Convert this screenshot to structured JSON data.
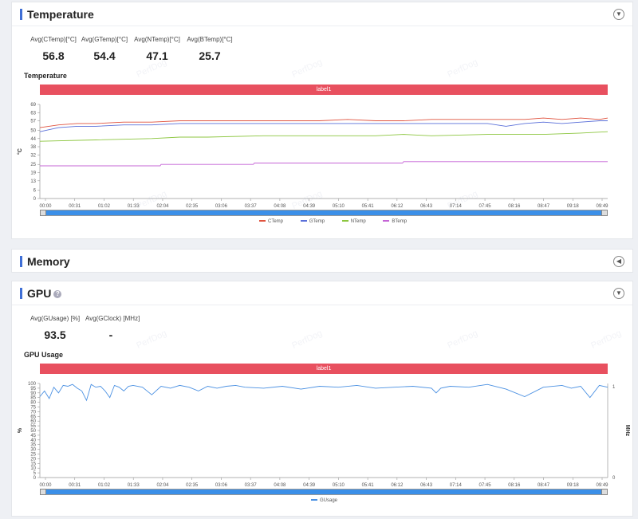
{
  "temperature": {
    "title": "Temperature",
    "metrics": [
      {
        "label": "Avg(CTemp)[°C]",
        "value": "56.8"
      },
      {
        "label": "Avg(GTemp)[°C]",
        "value": "54.4"
      },
      {
        "label": "Avg(NTemp)[°C]",
        "value": "47.1"
      },
      {
        "label": "Avg(BTemp)[°C]",
        "value": "25.7"
      }
    ],
    "chart_title": "Temperature",
    "label_bar": "label1"
  },
  "memory": {
    "title": "Memory"
  },
  "gpu": {
    "title": "GPU",
    "metrics": [
      {
        "label": "Avg(GUsage) [%]",
        "value": "93.5"
      },
      {
        "label": "Avg(GClock) [MHz]",
        "value": "-"
      }
    ],
    "chart_title": "GPU Usage",
    "label_bar": "label1"
  },
  "watermark": "PerfDog",
  "colors": {
    "CTemp": "#e0533f",
    "GTemp": "#5a6fd9",
    "NTemp": "#8cc63f",
    "BTemp": "#c565d6",
    "GUsage": "#4a90e2",
    "accent": "#3f6fd6",
    "label_bar": "#e8505f"
  },
  "chart_data": [
    {
      "type": "line",
      "title": "Temperature",
      "ylabel": "°C",
      "x_ticks": [
        "00:00",
        "00:31",
        "01:02",
        "01:33",
        "02:04",
        "02:35",
        "03:06",
        "03:37",
        "04:08",
        "04:39",
        "05:10",
        "05:41",
        "06:12",
        "06:43",
        "07:14",
        "07:45",
        "08:16",
        "08:47",
        "09:18",
        "09:49"
      ],
      "y_ticks": [
        0,
        6,
        13,
        19,
        25,
        32,
        38,
        44,
        50,
        57,
        63,
        69
      ],
      "ylim": [
        0,
        69
      ],
      "x_range_seconds": [
        0,
        609
      ],
      "series": [
        {
          "name": "CTemp",
          "x": [
            0,
            20,
            40,
            60,
            90,
            120,
            150,
            180,
            210,
            240,
            270,
            300,
            330,
            360,
            390,
            420,
            450,
            480,
            500,
            520,
            540,
            560,
            580,
            600,
            609
          ],
          "y": [
            52,
            54,
            55,
            55,
            56,
            56,
            57,
            57,
            57,
            57,
            57,
            57,
            58,
            57,
            57,
            58,
            58,
            58,
            58,
            58,
            59,
            58,
            59,
            58,
            59
          ]
        },
        {
          "name": "GTemp",
          "x": [
            0,
            20,
            40,
            60,
            90,
            120,
            150,
            180,
            210,
            240,
            270,
            300,
            330,
            360,
            390,
            420,
            450,
            480,
            500,
            520,
            540,
            560,
            580,
            600,
            609
          ],
          "y": [
            49,
            52,
            53,
            53,
            54,
            54,
            55,
            55,
            55,
            55,
            55,
            55,
            55,
            55,
            55,
            55,
            55,
            55,
            53,
            55,
            56,
            55,
            56,
            57,
            57
          ]
        },
        {
          "name": "NTemp",
          "x": [
            0,
            60,
            120,
            150,
            180,
            240,
            300,
            360,
            390,
            420,
            480,
            540,
            580,
            609
          ],
          "y": [
            42,
            43,
            44,
            45,
            45,
            46,
            46,
            46,
            47,
            46,
            47,
            47,
            48,
            49
          ]
        },
        {
          "name": "BTemp",
          "x": [
            0,
            129,
            130,
            229,
            230,
            389,
            390,
            609
          ],
          "y": [
            24,
            24,
            25,
            25,
            26,
            26,
            27,
            27
          ]
        }
      ]
    },
    {
      "type": "line",
      "title": "GPU Usage",
      "ylabel": "%",
      "y2label": "MHz",
      "x_ticks": [
        "00:00",
        "00:31",
        "01:02",
        "01:33",
        "02:04",
        "02:35",
        "03:06",
        "03:37",
        "04:08",
        "04:39",
        "05:10",
        "05:41",
        "06:12",
        "06:43",
        "07:14",
        "07:45",
        "08:16",
        "08:47",
        "09:18",
        "09:49"
      ],
      "y_ticks": [
        0,
        5,
        10,
        15,
        20,
        25,
        30,
        35,
        40,
        45,
        50,
        55,
        60,
        65,
        70,
        75,
        80,
        85,
        90,
        95,
        100
      ],
      "ylim": [
        0,
        100
      ],
      "y2_ticks": [
        0,
        1
      ],
      "x_range_seconds": [
        0,
        609
      ],
      "series": [
        {
          "name": "GUsage",
          "x": [
            0,
            5,
            10,
            15,
            20,
            25,
            30,
            35,
            40,
            45,
            50,
            55,
            60,
            65,
            70,
            75,
            80,
            85,
            90,
            95,
            100,
            110,
            120,
            130,
            140,
            150,
            160,
            170,
            180,
            190,
            200,
            210,
            220,
            240,
            260,
            280,
            300,
            320,
            340,
            360,
            380,
            400,
            420,
            425,
            430,
            440,
            460,
            480,
            500,
            520,
            540,
            560,
            570,
            580,
            590,
            600,
            609
          ],
          "y": [
            86,
            92,
            84,
            96,
            90,
            98,
            97,
            99,
            95,
            92,
            82,
            99,
            96,
            97,
            92,
            85,
            98,
            96,
            92,
            97,
            98,
            96,
            88,
            97,
            95,
            98,
            96,
            92,
            97,
            95,
            97,
            98,
            96,
            95,
            97,
            94,
            97,
            96,
            98,
            95,
            96,
            97,
            95,
            90,
            95,
            97,
            96,
            99,
            94,
            86,
            96,
            98,
            95,
            97,
            85,
            98,
            96
          ]
        }
      ]
    }
  ]
}
